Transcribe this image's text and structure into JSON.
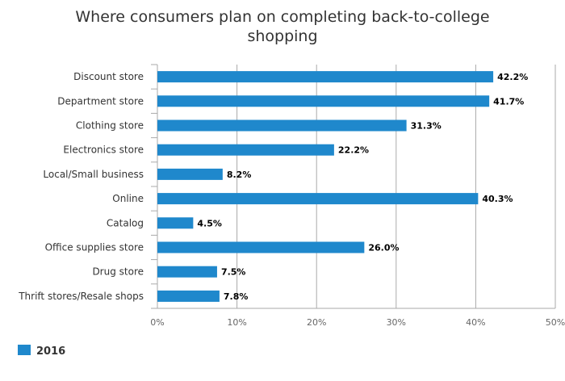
{
  "chart_data": {
    "type": "bar",
    "orientation": "horizontal",
    "title": "Where consumers plan on completing back-to-college shopping",
    "categories": [
      "Discount store",
      "Department store",
      "Clothing store",
      "Electronics store",
      "Local/Small business",
      "Online",
      "Catalog",
      "Office supplies store",
      "Drug store",
      "Thrift stores/Resale shops"
    ],
    "series": [
      {
        "name": "2016",
        "color": "#1f88cc",
        "values": [
          42.2,
          41.7,
          31.3,
          22.2,
          8.2,
          40.3,
          4.5,
          26.0,
          7.5,
          7.8
        ],
        "labels": [
          "42.2%",
          "41.7%",
          "31.3%",
          "22.2%",
          "8.2%",
          "40.3%",
          "4.5%",
          "26.0%",
          "7.5%",
          "7.8%"
        ]
      }
    ],
    "xlim": [
      0,
      50
    ],
    "xticks": [
      0,
      10,
      20,
      30,
      40,
      50
    ],
    "xtick_labels": [
      "0%",
      "10%",
      "20%",
      "30%",
      "40%",
      "50%"
    ],
    "grid": true,
    "legend": "bottom-left"
  }
}
